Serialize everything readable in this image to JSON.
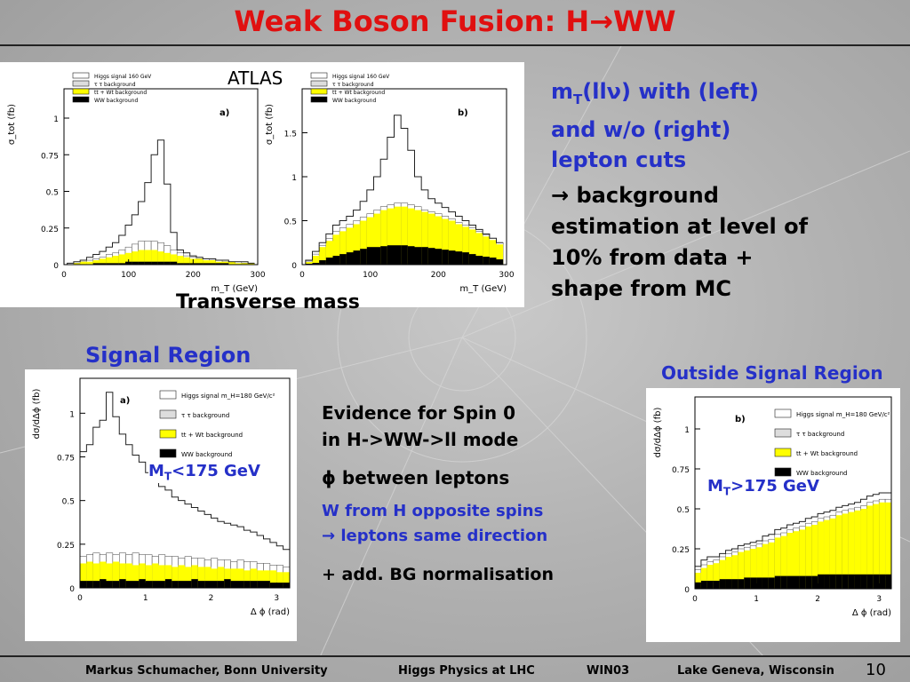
{
  "slide": {
    "title": "Weak Boson Fusion: H→WW",
    "atlas_label": "ATLAS",
    "transverse_mass_label": "Transverse mass",
    "right_text": {
      "line1": "m",
      "line1_sub": "T",
      "line1_rest": "(llν) with (left)",
      "line2": "and w/o (right)",
      "line3": "lepton cuts",
      "bullet1": "→ background",
      "bullet2": "estimation at level of",
      "bullet3": "10% from data +",
      "bullet4": "shape from MC"
    },
    "signal_region_label": "Signal Region",
    "outside_region_label": "Outside Signal Region",
    "cut_left_main": "M",
    "cut_left_sub": "T",
    "cut_left_rest": "<175 GeV",
    "cut_right_main": "M",
    "cut_right_sub": "T",
    "cut_right_rest": ">175 GeV",
    "middle_text": {
      "spin1": "Evidence for Spin 0",
      "spin2": "in H->WW->ll mode",
      "phi": "ϕ between leptons",
      "w1": "W from H opposite spins",
      "w2": "→ leptons same direction",
      "bg": "+ add. BG normalisation"
    },
    "footer": {
      "author": "Markus Schumacher,  Bonn University",
      "talk": "Higgs Physics at LHC",
      "conf": "WIN03",
      "place": "Lake Geneva, Wisconsin",
      "page": "10"
    }
  },
  "colors": {
    "title": "#e01010",
    "text_blue": "#2530c8",
    "ttbar": "#ffff00",
    "ww": "#000000"
  },
  "chart_data": [
    {
      "type": "area",
      "panel_tag": "a)",
      "ylabel": "σ_tot (fb)",
      "xlabel": "m_T (GeV)",
      "xlim": [
        0,
        300
      ],
      "ylim": [
        0,
        1.2
      ],
      "xticks": [
        0,
        100,
        200,
        300
      ],
      "yticks": [
        0,
        0.25,
        0.5,
        0.75,
        1
      ],
      "ytick_labels": [
        "0",
        "0.25",
        "0.5",
        "0.75",
        "1"
      ],
      "legend": [
        "Higgs signal 160 GeV",
        "τ τ background",
        "tt + Wt background",
        "WW background"
      ],
      "bins": [
        10,
        20,
        30,
        40,
        50,
        60,
        70,
        80,
        90,
        100,
        110,
        120,
        130,
        140,
        150,
        160,
        170,
        180,
        190,
        200,
        210,
        220,
        230,
        240,
        250,
        260,
        270,
        280,
        290
      ],
      "series": [
        {
          "name": "total",
          "values": [
            0.01,
            0.02,
            0.03,
            0.05,
            0.07,
            0.09,
            0.12,
            0.15,
            0.2,
            0.27,
            0.34,
            0.43,
            0.56,
            0.75,
            0.85,
            0.55,
            0.22,
            0.1,
            0.08,
            0.06,
            0.05,
            0.04,
            0.04,
            0.03,
            0.03,
            0.02,
            0.02,
            0.02,
            0.01
          ]
        },
        {
          "name": "tautau",
          "values": [
            0.0,
            0.01,
            0.02,
            0.03,
            0.04,
            0.05,
            0.07,
            0.08,
            0.1,
            0.12,
            0.14,
            0.16,
            0.16,
            0.16,
            0.15,
            0.13,
            0.1,
            0.08,
            0.06,
            0.05,
            0.04,
            0.04,
            0.03,
            0.03,
            0.02,
            0.02,
            0.02,
            0.01,
            0.01
          ]
        },
        {
          "name": "ttbar",
          "values": [
            0.0,
            0.01,
            0.02,
            0.02,
            0.03,
            0.04,
            0.05,
            0.06,
            0.07,
            0.08,
            0.09,
            0.1,
            0.1,
            0.1,
            0.09,
            0.08,
            0.07,
            0.06,
            0.05,
            0.04,
            0.04,
            0.03,
            0.03,
            0.02,
            0.02,
            0.02,
            0.01,
            0.01,
            0.01
          ]
        },
        {
          "name": "ww",
          "values": [
            0.0,
            0.0,
            0.0,
            0.0,
            0.01,
            0.01,
            0.01,
            0.01,
            0.01,
            0.02,
            0.02,
            0.02,
            0.02,
            0.02,
            0.02,
            0.02,
            0.02,
            0.01,
            0.01,
            0.01,
            0.01,
            0.01,
            0.01,
            0.01,
            0.01,
            0.0,
            0.0,
            0.0,
            0.0
          ]
        }
      ]
    },
    {
      "type": "area",
      "panel_tag": "b)",
      "ylabel": "σ_tot (fb)",
      "xlabel": "m_T (GeV)",
      "xlim": [
        0,
        300
      ],
      "ylim": [
        0,
        2.0
      ],
      "xticks": [
        0,
        100,
        200,
        300
      ],
      "yticks": [
        0,
        0.5,
        1,
        1.5
      ],
      "ytick_labels": [
        "0",
        "0.5",
        "1",
        "1.5"
      ],
      "legend": [
        "Higgs signal 160 GeV",
        "τ τ background",
        "tt + Wt background",
        "WW background"
      ],
      "bins": [
        10,
        20,
        30,
        40,
        50,
        60,
        70,
        80,
        90,
        100,
        110,
        120,
        130,
        140,
        150,
        160,
        170,
        180,
        190,
        200,
        210,
        220,
        230,
        240,
        250,
        260,
        270,
        280,
        290
      ],
      "series": [
        {
          "name": "total",
          "values": [
            0.05,
            0.15,
            0.25,
            0.35,
            0.45,
            0.5,
            0.55,
            0.62,
            0.72,
            0.85,
            1.0,
            1.2,
            1.45,
            1.7,
            1.55,
            1.3,
            1.0,
            0.85,
            0.75,
            0.7,
            0.65,
            0.6,
            0.55,
            0.5,
            0.45,
            0.4,
            0.35,
            0.3,
            0.25
          ]
        },
        {
          "name": "tautau",
          "values": [
            0.04,
            0.12,
            0.22,
            0.3,
            0.38,
            0.42,
            0.46,
            0.5,
            0.54,
            0.58,
            0.62,
            0.66,
            0.68,
            0.7,
            0.7,
            0.68,
            0.66,
            0.62,
            0.6,
            0.58,
            0.55,
            0.52,
            0.48,
            0.45,
            0.42,
            0.38,
            0.34,
            0.3,
            0.25
          ]
        },
        {
          "name": "ttbar",
          "values": [
            0.03,
            0.1,
            0.2,
            0.27,
            0.34,
            0.38,
            0.42,
            0.46,
            0.5,
            0.54,
            0.58,
            0.62,
            0.64,
            0.66,
            0.66,
            0.64,
            0.62,
            0.6,
            0.58,
            0.55,
            0.52,
            0.5,
            0.46,
            0.43,
            0.4,
            0.36,
            0.32,
            0.28,
            0.23
          ]
        },
        {
          "name": "ww",
          "values": [
            0.01,
            0.02,
            0.05,
            0.08,
            0.1,
            0.12,
            0.14,
            0.16,
            0.18,
            0.2,
            0.2,
            0.21,
            0.22,
            0.22,
            0.22,
            0.21,
            0.2,
            0.2,
            0.19,
            0.18,
            0.17,
            0.16,
            0.15,
            0.14,
            0.12,
            0.1,
            0.09,
            0.08,
            0.06
          ]
        }
      ]
    },
    {
      "type": "area",
      "panel_tag": "a)",
      "ylabel": "dσ/dΔϕ (fb)",
      "xlabel": "Δ ϕ (rad)",
      "xlim": [
        0,
        3.2
      ],
      "ylim": [
        0,
        1.2
      ],
      "xticks": [
        0,
        1,
        2,
        3
      ],
      "yticks": [
        0,
        0.25,
        0.5,
        0.75,
        1
      ],
      "ytick_labels": [
        "0",
        "0.25",
        "0.5",
        "0.75",
        "1"
      ],
      "legend": [
        "Higgs signal m_H=180 GeV/c²",
        "τ τ background",
        "tt + Wt background",
        "WW background"
      ],
      "bins": [
        0.05,
        0.15,
        0.25,
        0.35,
        0.45,
        0.55,
        0.65,
        0.75,
        0.85,
        0.95,
        1.05,
        1.15,
        1.25,
        1.35,
        1.45,
        1.55,
        1.65,
        1.75,
        1.85,
        1.95,
        2.05,
        2.15,
        2.25,
        2.35,
        2.45,
        2.55,
        2.65,
        2.75,
        2.85,
        2.95,
        3.05,
        3.15
      ],
      "series": [
        {
          "name": "total",
          "values": [
            0.78,
            0.82,
            0.92,
            0.96,
            1.12,
            0.98,
            0.88,
            0.82,
            0.76,
            0.72,
            0.66,
            0.62,
            0.58,
            0.56,
            0.52,
            0.5,
            0.48,
            0.46,
            0.44,
            0.42,
            0.4,
            0.38,
            0.37,
            0.36,
            0.35,
            0.33,
            0.32,
            0.3,
            0.28,
            0.26,
            0.24,
            0.22
          ]
        },
        {
          "name": "tautau",
          "values": [
            0.18,
            0.19,
            0.2,
            0.19,
            0.2,
            0.19,
            0.2,
            0.19,
            0.2,
            0.19,
            0.19,
            0.18,
            0.19,
            0.18,
            0.18,
            0.17,
            0.18,
            0.17,
            0.17,
            0.16,
            0.17,
            0.16,
            0.16,
            0.15,
            0.16,
            0.15,
            0.15,
            0.14,
            0.14,
            0.13,
            0.13,
            0.12
          ]
        },
        {
          "name": "ttbar",
          "values": [
            0.14,
            0.15,
            0.14,
            0.15,
            0.14,
            0.15,
            0.14,
            0.14,
            0.13,
            0.14,
            0.13,
            0.14,
            0.13,
            0.13,
            0.12,
            0.13,
            0.12,
            0.13,
            0.12,
            0.12,
            0.11,
            0.12,
            0.11,
            0.11,
            0.11,
            0.1,
            0.11,
            0.1,
            0.1,
            0.1,
            0.09,
            0.09
          ]
        },
        {
          "name": "ww",
          "values": [
            0.04,
            0.04,
            0.04,
            0.05,
            0.04,
            0.04,
            0.05,
            0.04,
            0.04,
            0.05,
            0.04,
            0.04,
            0.04,
            0.05,
            0.04,
            0.04,
            0.04,
            0.05,
            0.04,
            0.04,
            0.04,
            0.04,
            0.05,
            0.04,
            0.04,
            0.04,
            0.04,
            0.04,
            0.04,
            0.03,
            0.03,
            0.03
          ]
        }
      ]
    },
    {
      "type": "area",
      "panel_tag": "b)",
      "ylabel": "dσ/dΔϕ (fb)",
      "xlabel": "Δ ϕ (rad)",
      "xlim": [
        0,
        3.2
      ],
      "ylim": [
        0,
        1.2
      ],
      "xticks": [
        0,
        1,
        2,
        3
      ],
      "yticks": [
        0,
        0.25,
        0.5,
        0.75,
        1
      ],
      "ytick_labels": [
        "0",
        "0.25",
        "0.5",
        "0.75",
        "1"
      ],
      "legend": [
        "Higgs signal m_H=180 GeV/c²",
        "τ τ background",
        "tt + Wt background",
        "WW background"
      ],
      "bins": [
        0.05,
        0.15,
        0.25,
        0.35,
        0.45,
        0.55,
        0.65,
        0.75,
        0.85,
        0.95,
        1.05,
        1.15,
        1.25,
        1.35,
        1.45,
        1.55,
        1.65,
        1.75,
        1.85,
        1.95,
        2.05,
        2.15,
        2.25,
        2.35,
        2.45,
        2.55,
        2.65,
        2.75,
        2.85,
        2.95,
        3.05,
        3.15
      ],
      "series": [
        {
          "name": "total",
          "values": [
            0.14,
            0.18,
            0.2,
            0.2,
            0.22,
            0.24,
            0.25,
            0.27,
            0.28,
            0.29,
            0.3,
            0.33,
            0.34,
            0.37,
            0.38,
            0.4,
            0.41,
            0.42,
            0.44,
            0.45,
            0.47,
            0.48,
            0.49,
            0.51,
            0.52,
            0.53,
            0.54,
            0.56,
            0.58,
            0.59,
            0.6,
            0.6
          ]
        },
        {
          "name": "tautau",
          "values": [
            0.12,
            0.15,
            0.17,
            0.18,
            0.2,
            0.22,
            0.23,
            0.25,
            0.26,
            0.27,
            0.28,
            0.3,
            0.31,
            0.34,
            0.35,
            0.37,
            0.38,
            0.39,
            0.41,
            0.42,
            0.44,
            0.45,
            0.46,
            0.48,
            0.49,
            0.5,
            0.51,
            0.52,
            0.54,
            0.55,
            0.56,
            0.56
          ]
        },
        {
          "name": "ttbar",
          "values": [
            0.1,
            0.13,
            0.15,
            0.16,
            0.18,
            0.2,
            0.21,
            0.23,
            0.24,
            0.25,
            0.26,
            0.28,
            0.29,
            0.32,
            0.33,
            0.35,
            0.36,
            0.37,
            0.39,
            0.4,
            0.42,
            0.43,
            0.44,
            0.46,
            0.47,
            0.48,
            0.49,
            0.5,
            0.52,
            0.53,
            0.54,
            0.54
          ]
        },
        {
          "name": "ww",
          "values": [
            0.04,
            0.05,
            0.05,
            0.05,
            0.06,
            0.06,
            0.06,
            0.06,
            0.07,
            0.07,
            0.07,
            0.07,
            0.07,
            0.08,
            0.08,
            0.08,
            0.08,
            0.08,
            0.08,
            0.08,
            0.09,
            0.09,
            0.09,
            0.09,
            0.09,
            0.09,
            0.09,
            0.09,
            0.09,
            0.09,
            0.09,
            0.09
          ]
        }
      ]
    }
  ]
}
